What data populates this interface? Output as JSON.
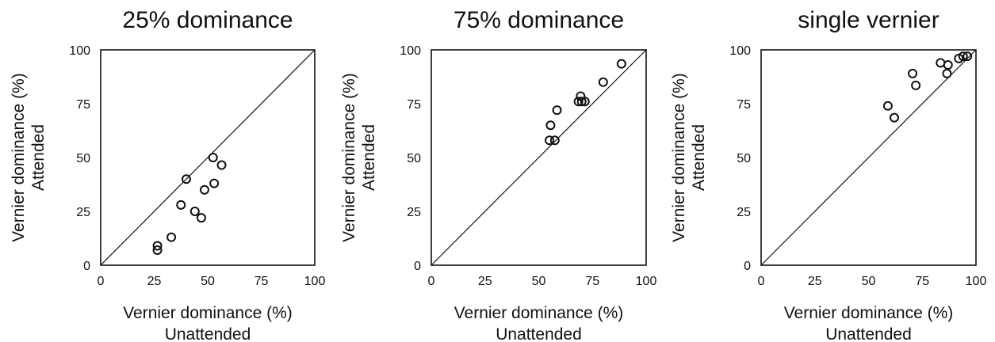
{
  "chart_data": [
    {
      "type": "scatter",
      "title": "25% dominance",
      "xlabel": "Vernier dominance (%)",
      "xlabel2": "Unattended",
      "ylabel": "Vernier dominance (%)",
      "ylabel2": "Attended",
      "xlim": [
        0,
        100
      ],
      "ylim": [
        0,
        100
      ],
      "xticks": [
        "0",
        "25",
        "50",
        "75",
        "100"
      ],
      "yticks": [
        "0",
        "25",
        "50",
        "75",
        "100"
      ],
      "identity_line": true,
      "points": [
        {
          "x": 26.5,
          "y": 9
        },
        {
          "x": 26.5,
          "y": 7
        },
        {
          "x": 33,
          "y": 13
        },
        {
          "x": 37.5,
          "y": 28
        },
        {
          "x": 40,
          "y": 40
        },
        {
          "x": 44,
          "y": 25
        },
        {
          "x": 47,
          "y": 22
        },
        {
          "x": 48.5,
          "y": 35
        },
        {
          "x": 52.5,
          "y": 50
        },
        {
          "x": 53,
          "y": 38
        },
        {
          "x": 56.5,
          "y": 46.5
        }
      ]
    },
    {
      "type": "scatter",
      "title": "75% dominance",
      "xlabel": "Vernier dominance (%)",
      "xlabel2": "Unattended",
      "ylabel": "Vernier dominance (%)",
      "ylabel2": "Attended",
      "xlim": [
        0,
        100
      ],
      "ylim": [
        0,
        100
      ],
      "xticks": [
        "0",
        "25",
        "50",
        "75",
        "100"
      ],
      "yticks": [
        "0",
        "25",
        "50",
        "75",
        "100"
      ],
      "identity_line": true,
      "points": [
        {
          "x": 55,
          "y": 58
        },
        {
          "x": 55.5,
          "y": 65
        },
        {
          "x": 57.5,
          "y": 58
        },
        {
          "x": 58.5,
          "y": 72
        },
        {
          "x": 68.5,
          "y": 76
        },
        {
          "x": 69.5,
          "y": 78.5
        },
        {
          "x": 70,
          "y": 76
        },
        {
          "x": 71.5,
          "y": 76
        },
        {
          "x": 80,
          "y": 85
        },
        {
          "x": 88.5,
          "y": 93.5
        }
      ]
    },
    {
      "type": "scatter",
      "title": "single vernier",
      "xlabel": "Vernier dominance (%)",
      "xlabel2": "Unattended",
      "ylabel": "Vernier dominance (%)",
      "ylabel2": "Attended",
      "xlim": [
        0,
        100
      ],
      "ylim": [
        0,
        100
      ],
      "xticks": [
        "0",
        "25",
        "50",
        "75",
        "100"
      ],
      "yticks": [
        "0",
        "25",
        "50",
        "75",
        "100"
      ],
      "identity_line": true,
      "points": [
        {
          "x": 59,
          "y": 74
        },
        {
          "x": 62,
          "y": 68.5
        },
        {
          "x": 70.5,
          "y": 89
        },
        {
          "x": 72,
          "y": 83.5
        },
        {
          "x": 83.5,
          "y": 94
        },
        {
          "x": 86.5,
          "y": 89
        },
        {
          "x": 87,
          "y": 93
        },
        {
          "x": 92,
          "y": 96
        },
        {
          "x": 94,
          "y": 97
        },
        {
          "x": 96,
          "y": 97
        }
      ]
    }
  ]
}
